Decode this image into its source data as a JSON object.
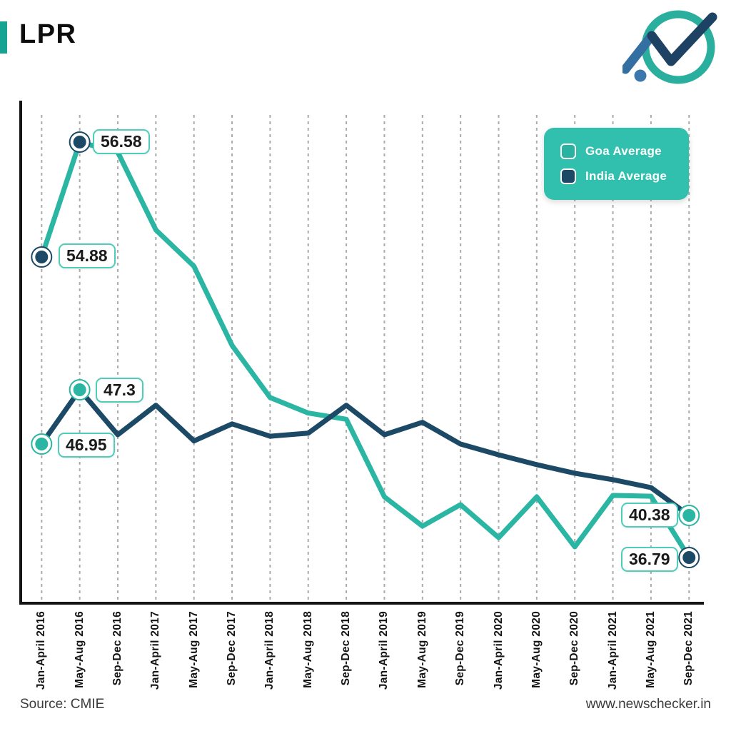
{
  "header": {
    "title": "LPR",
    "accent_color": "#17a394",
    "logo_icon": "newschecker-logo"
  },
  "legend": {
    "position": "top-right",
    "background_color": "#31c0ad",
    "items": [
      {
        "label": "Goa Average",
        "swatch_color": "#2ab2a0"
      },
      {
        "label": "India Average",
        "swatch_color": "#1c4966"
      }
    ]
  },
  "chart_data": {
    "type": "line",
    "title": "LPR",
    "xlabel": "",
    "ylabel": "",
    "grid": "vertical-dashed",
    "y_axis_ticks_visible": false,
    "legend_position": "top-right",
    "categories": [
      "Jan-April 2016",
      "May-Aug 2016",
      "Sep-Dec 2016",
      "Jan-April 2017",
      "May-Aug 2017",
      "Sep-Dec 2017",
      "Jan-April 2018",
      "May-Aug 2018",
      "Sep-Dec 2018",
      "Jan-April 2019",
      "May-Aug 2019",
      "Sep-Dec 2019",
      "Jan-April 2020",
      "May-Aug 2020",
      "Sep-Dec 2020",
      "Jan-April 2021",
      "May-Aug 2021",
      "Sep-Dec 2021"
    ],
    "series": [
      {
        "name": "Goa Average",
        "color": "#2bb5a3",
        "marker_color": "#1c4966",
        "values": [
          54.88,
          56.58,
          56.43,
          55.28,
          54.35,
          49.83,
          47.25,
          47.15,
          47.11,
          42.09,
          39.47,
          41.37,
          38.49,
          42.09,
          37.7,
          42.22,
          42.15,
          36.79
        ]
      },
      {
        "name": "India Average",
        "color": "#1c4966",
        "marker_color": "#2bb5a3",
        "values": [
          46.95,
          47.3,
          47.01,
          47.2,
          46.97,
          47.08,
          47.0,
          47.02,
          47.2,
          47.01,
          47.09,
          46.95,
          45.96,
          45.05,
          44.26,
          43.67,
          42.94,
          40.38
        ]
      }
    ],
    "labeled_points": [
      {
        "series": 0,
        "category_index": 0,
        "label": "54.88"
      },
      {
        "series": 0,
        "category_index": 1,
        "label": "56.58"
      },
      {
        "series": 1,
        "category_index": 0,
        "label": "46.95"
      },
      {
        "series": 1,
        "category_index": 1,
        "label": "47.3"
      },
      {
        "series": 1,
        "category_index": 17,
        "label": "40.38"
      },
      {
        "series": 0,
        "category_index": 17,
        "label": "36.79"
      }
    ]
  },
  "footer": {
    "source": "Source: CMIE",
    "website": "www.newschecker.in"
  }
}
